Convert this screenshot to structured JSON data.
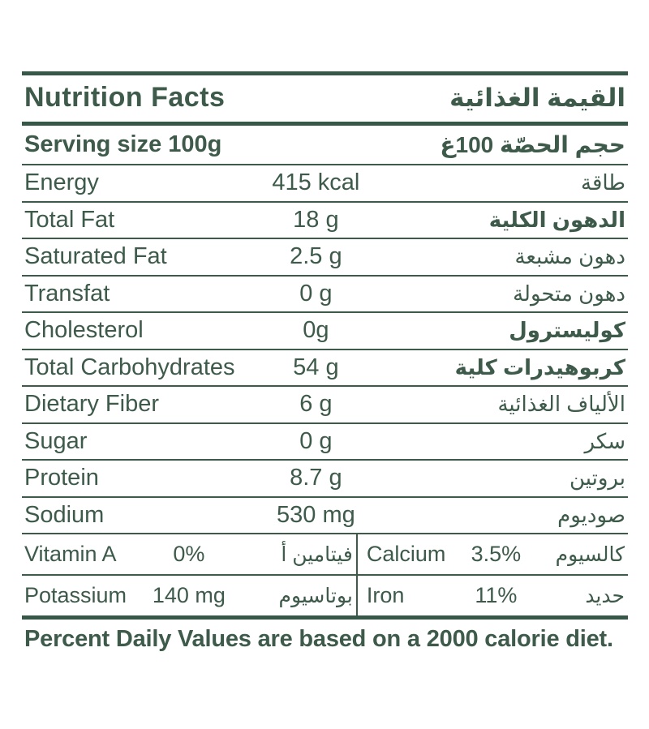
{
  "header": {
    "title_en": "Nutrition Facts",
    "title_ar": "القيمة الغذائية"
  },
  "serving": {
    "label_en": "Serving size 100g",
    "label_ar": "حجم الحصّة 100غ"
  },
  "rows": [
    {
      "en": "Energy",
      "value": "415 kcal",
      "ar": "طاقة"
    },
    {
      "en": "Total Fat",
      "value": "18 g",
      "ar": "الدهون الكلية"
    },
    {
      "en": "Saturated Fat",
      "value": "2.5 g",
      "ar": "دهون مشبعة"
    },
    {
      "en": "Transfat",
      "value": "0 g",
      "ar": "دهون متحولة"
    },
    {
      "en": "Cholesterol",
      "value": "0g",
      "ar": "كوليسترول"
    },
    {
      "en": "Total Carbohydrates",
      "value": "54 g",
      "ar": "كربوهيدرات كلية"
    },
    {
      "en": "Dietary Fiber",
      "value": "6 g",
      "ar": "الألياف الغذائية"
    },
    {
      "en": "Sugar",
      "value": "0 g",
      "ar": "سكر"
    },
    {
      "en": "Protein",
      "value": "8.7 g",
      "ar": "بروتين"
    },
    {
      "en": "Sodium",
      "value": "530 mg",
      "ar": "صوديوم"
    }
  ],
  "micronutrients": {
    "vitamin_a": {
      "en": "Vitamin A",
      "value": "0%",
      "ar": "فيتامين أ"
    },
    "calcium": {
      "en": "Calcium",
      "value": "3.5%",
      "ar": "كالسيوم"
    },
    "potassium": {
      "en": "Potassium",
      "value": "140 mg",
      "ar": "بوتاسيوم"
    },
    "iron": {
      "en": "Iron",
      "value": "11%",
      "ar": "حديد"
    }
  },
  "footer": {
    "note": "Percent Daily Values are based on a 2000 calorie diet."
  },
  "colors": {
    "text": "#3d5a4a",
    "rule": "#375748",
    "background": "#ffffff"
  }
}
